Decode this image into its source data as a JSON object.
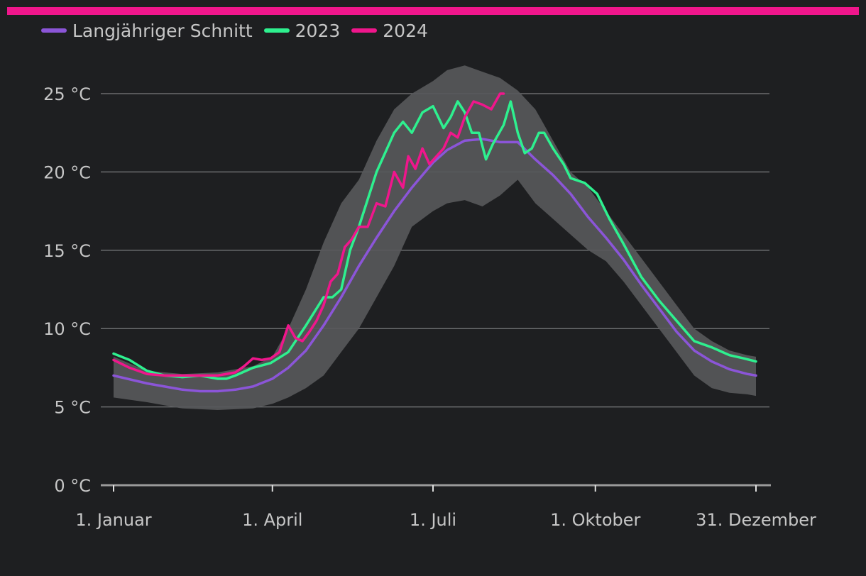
{
  "colors": {
    "accent_bar": "#f0168c",
    "background": "#1e1f21",
    "band": "#58595b",
    "grid": "#6b6c6e",
    "axis": "#9a9a9a"
  },
  "chart_data": {
    "type": "line",
    "title": "",
    "xlabel": "",
    "ylabel": "",
    "x_unit": "day of year",
    "xlim": [
      1,
      365
    ],
    "ylim": [
      0,
      25
    ],
    "y_ticks": [
      {
        "value": 0,
        "label": "0 °C"
      },
      {
        "value": 5,
        "label": "5 °C"
      },
      {
        "value": 10,
        "label": "10 °C"
      },
      {
        "value": 15,
        "label": "15 °C"
      },
      {
        "value": 20,
        "label": "20 °C"
      },
      {
        "value": 25,
        "label": "25 °C"
      }
    ],
    "x_ticks": [
      {
        "day": 1,
        "label": "1. Januar"
      },
      {
        "day": 91,
        "label": "1. April"
      },
      {
        "day": 182,
        "label": "1. Juli"
      },
      {
        "day": 274,
        "label": "1. Oktober"
      },
      {
        "day": 365,
        "label": "31. Dezember"
      }
    ],
    "grid": true,
    "legend": "top-left",
    "legend_entries": [
      "Langjähriger Schnitt",
      "2023",
      "2024"
    ],
    "band": {
      "x": [
        1,
        20,
        40,
        60,
        80,
        91,
        100,
        110,
        120,
        130,
        140,
        150,
        160,
        170,
        182,
        190,
        200,
        210,
        220,
        230,
        240,
        250,
        260,
        270,
        280,
        290,
        300,
        310,
        320,
        330,
        340,
        350,
        360,
        365
      ],
      "upper": [
        8.2,
        7.3,
        7.1,
        7.2,
        7.6,
        8.2,
        10.0,
        12.5,
        15.5,
        18.0,
        19.5,
        22.0,
        24.0,
        25.0,
        25.8,
        26.5,
        26.8,
        26.4,
        26.0,
        25.2,
        24.0,
        22.0,
        20.0,
        19.0,
        17.5,
        16.0,
        14.5,
        13.0,
        11.5,
        10.0,
        9.2,
        8.6,
        8.3,
        8.2
      ],
      "lower": [
        5.6,
        5.3,
        4.9,
        4.8,
        4.9,
        5.2,
        5.6,
        6.2,
        7.0,
        8.5,
        10.0,
        12.0,
        14.0,
        16.5,
        17.5,
        18.0,
        18.2,
        17.8,
        18.5,
        19.5,
        18.0,
        17.0,
        16.0,
        15.0,
        14.3,
        13.0,
        11.5,
        10.0,
        8.5,
        7.0,
        6.2,
        5.9,
        5.8,
        5.7
      ]
    },
    "series": [
      {
        "name": "Langjähriger Schnitt",
        "color": "#8b55d8",
        "x": [
          1,
          20,
          40,
          50,
          60,
          70,
          80,
          91,
          100,
          110,
          120,
          130,
          140,
          150,
          160,
          170,
          182,
          190,
          200,
          210,
          220,
          230,
          240,
          250,
          260,
          270,
          280,
          290,
          300,
          310,
          320,
          330,
          340,
          350,
          360,
          365
        ],
        "values": [
          7.0,
          6.5,
          6.1,
          6.0,
          6.0,
          6.1,
          6.3,
          6.8,
          7.5,
          8.6,
          10.2,
          12.0,
          14.0,
          15.8,
          17.5,
          19.0,
          20.6,
          21.4,
          22.0,
          22.1,
          21.9,
          21.9,
          20.8,
          19.8,
          18.6,
          17.1,
          15.8,
          14.4,
          12.8,
          11.3,
          9.8,
          8.6,
          7.9,
          7.4,
          7.1,
          7.0
        ]
      },
      {
        "name": "2023",
        "color": "#2ef08f",
        "x": [
          1,
          10,
          20,
          30,
          40,
          50,
          60,
          65,
          70,
          80,
          90,
          100,
          110,
          120,
          125,
          130,
          135,
          140,
          150,
          160,
          165,
          170,
          176,
          182,
          188,
          192,
          196,
          200,
          204,
          208,
          212,
          216,
          222,
          226,
          230,
          234,
          238,
          242,
          245,
          250,
          256,
          260,
          268,
          275,
          282,
          290,
          300,
          310,
          320,
          330,
          340,
          350,
          358,
          365
        ],
        "values": [
          8.4,
          8.0,
          7.3,
          7.0,
          6.9,
          7.0,
          6.8,
          6.8,
          7.0,
          7.5,
          7.8,
          8.5,
          10.2,
          12.0,
          12.0,
          12.5,
          15.0,
          16.5,
          20.0,
          22.5,
          23.2,
          22.5,
          23.8,
          24.2,
          22.8,
          23.5,
          24.5,
          23.8,
          22.5,
          22.5,
          20.8,
          21.8,
          23.0,
          24.5,
          22.5,
          21.2,
          21.5,
          22.5,
          22.5,
          21.5,
          20.5,
          19.6,
          19.3,
          18.6,
          17.0,
          15.4,
          13.3,
          11.8,
          10.5,
          9.2,
          8.8,
          8.3,
          8.1,
          7.9
        ]
      },
      {
        "name": "2024",
        "color": "#f0168c",
        "x": [
          1,
          10,
          20,
          30,
          40,
          50,
          60,
          70,
          75,
          80,
          85,
          90,
          95,
          100,
          104,
          108,
          112,
          116,
          120,
          124,
          128,
          132,
          136,
          140,
          145,
          150,
          155,
          160,
          165,
          168,
          172,
          176,
          180,
          184,
          188,
          192,
          196,
          200,
          205,
          210,
          215,
          220,
          222
        ],
        "values": [
          8.0,
          7.5,
          7.1,
          7.0,
          7.0,
          7.0,
          7.0,
          7.2,
          7.6,
          8.1,
          8.0,
          8.1,
          8.5,
          10.2,
          9.4,
          9.2,
          9.8,
          10.5,
          11.5,
          13.0,
          13.5,
          15.2,
          15.7,
          16.5,
          16.5,
          18.0,
          17.8,
          20.0,
          19.0,
          21.0,
          20.2,
          21.5,
          20.5,
          21.0,
          21.5,
          22.5,
          22.2,
          23.5,
          24.5,
          24.3,
          24.0,
          25.0,
          25.0
        ]
      }
    ]
  }
}
